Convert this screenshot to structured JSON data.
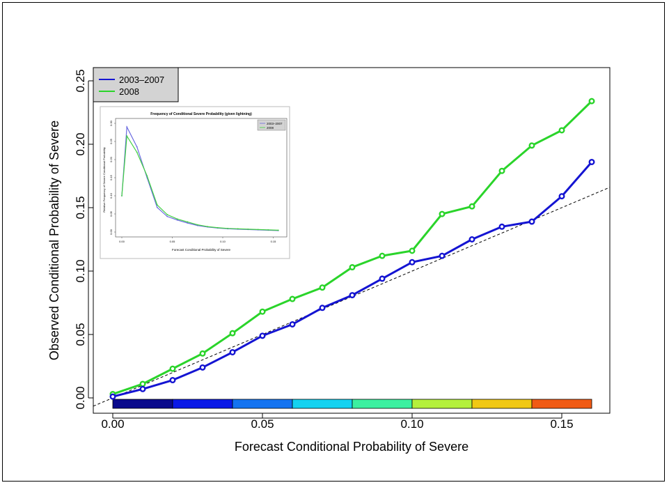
{
  "chart_data": [
    {
      "type": "line",
      "xlabel": "Forecast Conditional Probability of Severe",
      "ylabel": "Observed Conditional Probability of Severe",
      "xlim": [
        0.0,
        0.165
      ],
      "ylim": [
        0.0,
        0.25
      ],
      "x_ticks": [
        "0.00",
        "0.05",
        "0.10",
        "0.15"
      ],
      "y_ticks": [
        "0.00",
        "0.05",
        "0.10",
        "0.15",
        "0.20",
        "0.25"
      ],
      "x_tick_values": [
        0.0,
        0.05,
        0.1,
        0.15
      ],
      "y_tick_values": [
        0.0,
        0.05,
        0.1,
        0.15,
        0.2,
        0.25
      ],
      "legend_position": "top-left",
      "grid": false,
      "diagonal_reference": true,
      "color_bar": {
        "bins": [
          [
            0.0,
            0.02
          ],
          [
            0.02,
            0.04
          ],
          [
            0.04,
            0.06
          ],
          [
            0.06,
            0.08
          ],
          [
            0.08,
            0.1
          ],
          [
            0.1,
            0.12
          ],
          [
            0.12,
            0.14
          ],
          [
            0.14,
            0.16
          ]
        ],
        "colors": [
          "#0a0a8c",
          "#0a19e6",
          "#1473f0",
          "#14d2f0",
          "#3cf0a0",
          "#b4f03c",
          "#f0c814",
          "#f05a14"
        ]
      },
      "series": [
        {
          "name": "2003–2007",
          "color": "#1414d2",
          "x": [
            0.0,
            0.01,
            0.02,
            0.03,
            0.04,
            0.05,
            0.06,
            0.07,
            0.08,
            0.09,
            0.1,
            0.11,
            0.12,
            0.13,
            0.14,
            0.15,
            0.16
          ],
          "y": [
            0.001,
            0.007,
            0.014,
            0.024,
            0.036,
            0.049,
            0.058,
            0.071,
            0.081,
            0.094,
            0.107,
            0.112,
            0.125,
            0.135,
            0.139,
            0.159,
            0.186
          ]
        },
        {
          "name": "2008",
          "color": "#2ad42a",
          "x": [
            0.0,
            0.01,
            0.02,
            0.03,
            0.04,
            0.05,
            0.06,
            0.07,
            0.08,
            0.09,
            0.1,
            0.11,
            0.12,
            0.13,
            0.14,
            0.15,
            0.16
          ],
          "y": [
            0.003,
            0.011,
            0.023,
            0.035,
            0.051,
            0.068,
            0.078,
            0.087,
            0.103,
            0.112,
            0.116,
            0.145,
            0.151,
            0.179,
            0.199,
            0.211,
            0.234
          ]
        }
      ]
    },
    {
      "type": "line",
      "title": "Frequency of Conditional Severe Probability (given lightning)",
      "xlabel": "Forecast Conditional Probability of Severe",
      "ylabel": "Relative Frequency of Severe Conditional Probability",
      "xlim": [
        0.0,
        0.165
      ],
      "ylim": [
        0.0,
        0.3
      ],
      "x_ticks": [
        "0.00",
        "0.05",
        "0.10",
        "0.15"
      ],
      "y_ticks": [
        "0.00",
        "0.05",
        "0.10",
        "0.15",
        "0.20",
        "0.25",
        "0.30"
      ],
      "x_tick_values": [
        0.0,
        0.05,
        0.1,
        0.15
      ],
      "y_tick_values": [
        0.0,
        0.05,
        0.1,
        0.15,
        0.2,
        0.25,
        0.3
      ],
      "legend_position": "top-right",
      "series": [
        {
          "name": "2003–2007",
          "color": "#6a6ae0",
          "x": [
            0.0,
            0.005,
            0.015,
            0.025,
            0.035,
            0.045,
            0.055,
            0.065,
            0.075,
            0.085,
            0.095,
            0.105,
            0.115,
            0.125,
            0.135,
            0.145,
            0.155
          ],
          "y": [
            0.1,
            0.29,
            0.235,
            0.15,
            0.068,
            0.043,
            0.033,
            0.025,
            0.018,
            0.014,
            0.011,
            0.009,
            0.008,
            0.007,
            0.006,
            0.005,
            0.004
          ]
        },
        {
          "name": "2008",
          "color": "#40d040",
          "x": [
            0.0,
            0.005,
            0.015,
            0.025,
            0.035,
            0.045,
            0.055,
            0.065,
            0.075,
            0.085,
            0.095,
            0.105,
            0.115,
            0.125,
            0.135,
            0.145,
            0.155
          ],
          "y": [
            0.1,
            0.265,
            0.22,
            0.155,
            0.075,
            0.048,
            0.036,
            0.028,
            0.02,
            0.015,
            0.012,
            0.01,
            0.009,
            0.008,
            0.007,
            0.006,
            0.005
          ]
        }
      ]
    }
  ]
}
